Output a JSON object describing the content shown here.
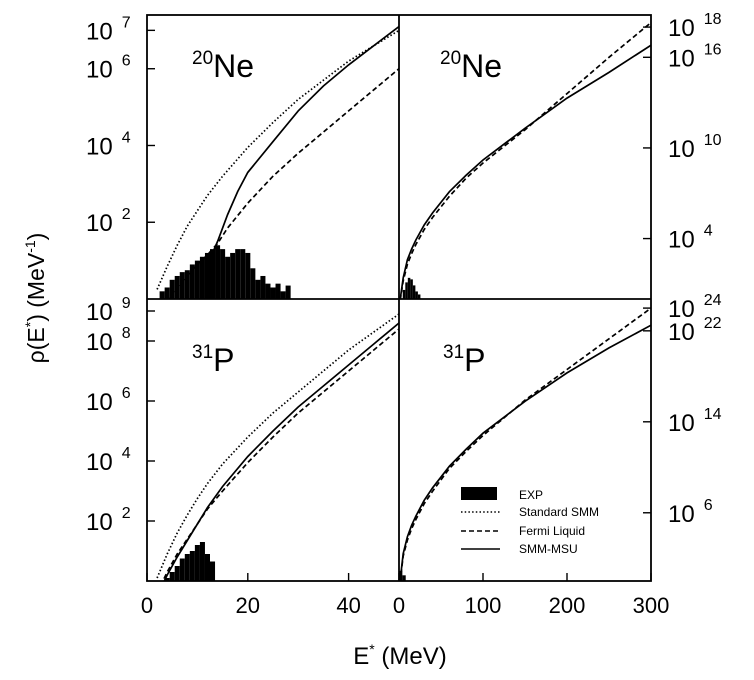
{
  "figure": {
    "y_label_main": "ρ(E",
    "y_label_star": "*",
    "y_label_mid": ") (MeV",
    "y_label_exp": "-1",
    "y_label_end": ")",
    "x_label_main": "E",
    "x_label_star": "*",
    "x_label_end": " (MeV)"
  },
  "legend": {
    "entries": [
      {
        "label": "EXP",
        "style": "bar"
      },
      {
        "label": "Standard SMM",
        "style": "dotted"
      },
      {
        "label": "Fermi Liquid",
        "style": "dashed"
      },
      {
        "label": "SMM-MSU",
        "style": "solid"
      }
    ]
  },
  "chart_data": [
    {
      "type": "line",
      "panel": "top-left",
      "nucleus_mass": "20",
      "nucleus_symbol": "Ne",
      "x_scale": "linear",
      "y_scale": "log",
      "xlim": [
        0,
        50
      ],
      "ylim_log10": [
        0,
        7.4
      ],
      "x_ticks": [],
      "y_ticks": [
        {
          "base": "10",
          "exp": "2",
          "v": 2
        },
        {
          "base": "10",
          "exp": "4",
          "v": 4
        },
        {
          "base": "10",
          "exp": "6",
          "v": 6
        },
        {
          "base": "10",
          "exp": "7",
          "v": 7
        }
      ],
      "series": [
        {
          "name": "Standard SMM",
          "style": "dotted",
          "x": [
            2,
            4,
            6,
            8,
            10,
            12,
            15,
            20,
            25,
            30,
            35,
            40,
            45,
            50
          ],
          "log10y": [
            0.25,
            0.85,
            1.4,
            1.9,
            2.3,
            2.7,
            3.2,
            3.95,
            4.6,
            5.2,
            5.7,
            6.2,
            6.6,
            7.0
          ]
        },
        {
          "name": "Fermi Liquid",
          "style": "dashed",
          "x": [
            2,
            4,
            6,
            8,
            10,
            12,
            14,
            16,
            20,
            25,
            30,
            35,
            40,
            45,
            50
          ],
          "log10y": [
            -0.4,
            -0.05,
            0.3,
            0.6,
            0.9,
            1.15,
            1.45,
            1.85,
            2.5,
            3.2,
            3.8,
            4.35,
            4.9,
            5.45,
            6.0
          ]
        },
        {
          "name": "SMM-MSU",
          "style": "solid",
          "x": [
            12,
            14,
            16,
            18,
            20,
            25,
            30,
            35,
            40,
            45,
            50
          ],
          "log10y": [
            0.9,
            1.5,
            2.2,
            2.8,
            3.3,
            4.1,
            4.9,
            5.55,
            6.1,
            6.6,
            7.1
          ]
        }
      ],
      "exp_bins": {
        "width": 1,
        "x": [
          3,
          4,
          5,
          6,
          7,
          8,
          9,
          10,
          11,
          12,
          13,
          14,
          15,
          16,
          17,
          18,
          19,
          20,
          21,
          22,
          23,
          24,
          25,
          26,
          27,
          28
        ],
        "log10y": [
          0.2,
          0.3,
          0.5,
          0.6,
          0.7,
          0.75,
          0.9,
          1.0,
          1.1,
          1.2,
          1.3,
          1.4,
          1.3,
          1.1,
          1.2,
          1.3,
          1.3,
          1.2,
          0.8,
          0.5,
          0.6,
          0.4,
          0.3,
          0.4,
          0.2,
          0.35
        ]
      }
    },
    {
      "type": "line",
      "panel": "top-right",
      "nucleus_mass": "20",
      "nucleus_symbol": "Ne",
      "x_scale": "linear",
      "y_scale": "log",
      "xlim": [
        0,
        300
      ],
      "ylim_log10": [
        0,
        18.8
      ],
      "x_ticks": [],
      "y_ticks": [
        {
          "base": "10",
          "exp": "4",
          "v": 4
        },
        {
          "base": "10",
          "exp": "10",
          "v": 10
        },
        {
          "base": "10",
          "exp": "16",
          "v": 16
        },
        {
          "base": "10",
          "exp": "18",
          "v": 18
        }
      ],
      "series": [
        {
          "name": "Fermi Liquid",
          "style": "dashed",
          "x": [
            0,
            5,
            10,
            15,
            20,
            30,
            40,
            60,
            80,
            100,
            150,
            200,
            250,
            300
          ],
          "log10y": [
            -0.6,
            1.2,
            2.3,
            3.0,
            3.6,
            4.6,
            5.4,
            6.8,
            8.0,
            9.0,
            11.2,
            13.6,
            16.0,
            18.3
          ]
        },
        {
          "name": "SMM-MSU",
          "style": "solid",
          "x": [
            0,
            5,
            10,
            15,
            20,
            30,
            40,
            60,
            80,
            100,
            150,
            200,
            250,
            300
          ],
          "log10y": [
            -0.6,
            1.4,
            2.6,
            3.3,
            3.9,
            4.9,
            5.7,
            7.1,
            8.2,
            9.2,
            11.3,
            13.3,
            15.0,
            16.8
          ]
        }
      ],
      "exp_bins": {
        "width": 3,
        "x": [
          6,
          9,
          12,
          15,
          18,
          21,
          24
        ],
        "log10y": [
          0.6,
          1.1,
          1.4,
          1.3,
          0.9,
          0.5,
          0.3
        ]
      }
    },
    {
      "type": "line",
      "panel": "bottom-left",
      "nucleus_mass": "31",
      "nucleus_symbol": "P",
      "x_scale": "linear",
      "y_scale": "log",
      "xlim": [
        0,
        50
      ],
      "ylim_log10": [
        0,
        9.4
      ],
      "x_ticks": [
        {
          "label": "0",
          "v": 0
        },
        {
          "label": "20",
          "v": 20
        },
        {
          "label": "40",
          "v": 40
        }
      ],
      "y_ticks": [
        {
          "base": "10",
          "exp": "2",
          "v": 2
        },
        {
          "base": "10",
          "exp": "4",
          "v": 4
        },
        {
          "base": "10",
          "exp": "6",
          "v": 6
        },
        {
          "base": "10",
          "exp": "8",
          "v": 8
        },
        {
          "base": "10",
          "exp": "9",
          "v": 9
        }
      ],
      "series": [
        {
          "name": "Standard SMM",
          "style": "dotted",
          "x": [
            2,
            4,
            6,
            8,
            10,
            12,
            15,
            20,
            25,
            30,
            35,
            40,
            45,
            50
          ],
          "log10y": [
            0.1,
            0.9,
            1.6,
            2.2,
            2.75,
            3.25,
            3.9,
            4.8,
            5.6,
            6.3,
            7.0,
            7.7,
            8.3,
            8.9
          ]
        },
        {
          "name": "Fermi Liquid",
          "style": "dashed",
          "x": [
            2,
            4,
            6,
            8,
            10,
            12,
            15,
            20,
            25,
            30,
            35,
            40,
            45,
            50
          ],
          "log10y": [
            -0.4,
            0.3,
            0.9,
            1.4,
            1.9,
            2.4,
            3.0,
            3.95,
            4.8,
            5.6,
            6.3,
            7.0,
            7.7,
            8.4
          ]
        },
        {
          "name": "SMM-MSU",
          "style": "solid",
          "x": [
            2,
            4,
            6,
            8,
            10,
            12,
            15,
            20,
            25,
            30,
            35,
            40,
            45,
            50
          ],
          "log10y": [
            -0.5,
            0.2,
            0.8,
            1.35,
            1.9,
            2.45,
            3.15,
            4.15,
            5.0,
            5.8,
            6.5,
            7.2,
            7.9,
            8.6
          ]
        }
      ],
      "exp_bins": {
        "width": 1,
        "x": [
          4,
          5,
          6,
          7,
          8,
          9,
          10,
          11,
          12,
          13
        ],
        "log10y": [
          0.1,
          0.3,
          0.5,
          0.75,
          0.9,
          1.0,
          1.2,
          1.3,
          0.9,
          0.65
        ]
      }
    },
    {
      "type": "line",
      "panel": "bottom-right",
      "nucleus_mass": "31",
      "nucleus_symbol": "P",
      "x_scale": "linear",
      "y_scale": "log",
      "xlim": [
        0,
        300
      ],
      "ylim_log10": [
        0,
        24.8
      ],
      "x_ticks": [
        {
          "label": "0",
          "v": 0
        },
        {
          "label": "100",
          "v": 100
        },
        {
          "label": "200",
          "v": 200
        },
        {
          "label": "300",
          "v": 300
        }
      ],
      "y_ticks": [
        {
          "base": "10",
          "exp": "6",
          "v": 6
        },
        {
          "base": "10",
          "exp": "14",
          "v": 14
        },
        {
          "base": "10",
          "exp": "22",
          "v": 22
        },
        {
          "base": "10",
          "exp": "24",
          "v": 24
        }
      ],
      "series": [
        {
          "name": "Fermi Liquid",
          "style": "dashed",
          "x": [
            0,
            5,
            10,
            15,
            20,
            30,
            40,
            60,
            80,
            100,
            150,
            200,
            250,
            300
          ],
          "log10y": [
            -0.8,
            2.2,
            3.6,
            4.6,
            5.4,
            6.8,
            7.9,
            9.9,
            11.4,
            12.8,
            15.9,
            18.6,
            21.3,
            24.0
          ]
        },
        {
          "name": "SMM-MSU",
          "style": "solid",
          "x": [
            0,
            5,
            10,
            15,
            20,
            30,
            40,
            60,
            80,
            100,
            150,
            200,
            250,
            300
          ],
          "log10y": [
            -0.8,
            2.4,
            3.9,
            4.9,
            5.7,
            7.1,
            8.2,
            10.1,
            11.6,
            13.0,
            15.8,
            18.3,
            20.5,
            22.5
          ]
        }
      ],
      "exp_bins": {
        "width": 4,
        "x": [
          2,
          6
        ],
        "log10y": [
          0.9,
          0.5
        ]
      }
    }
  ]
}
